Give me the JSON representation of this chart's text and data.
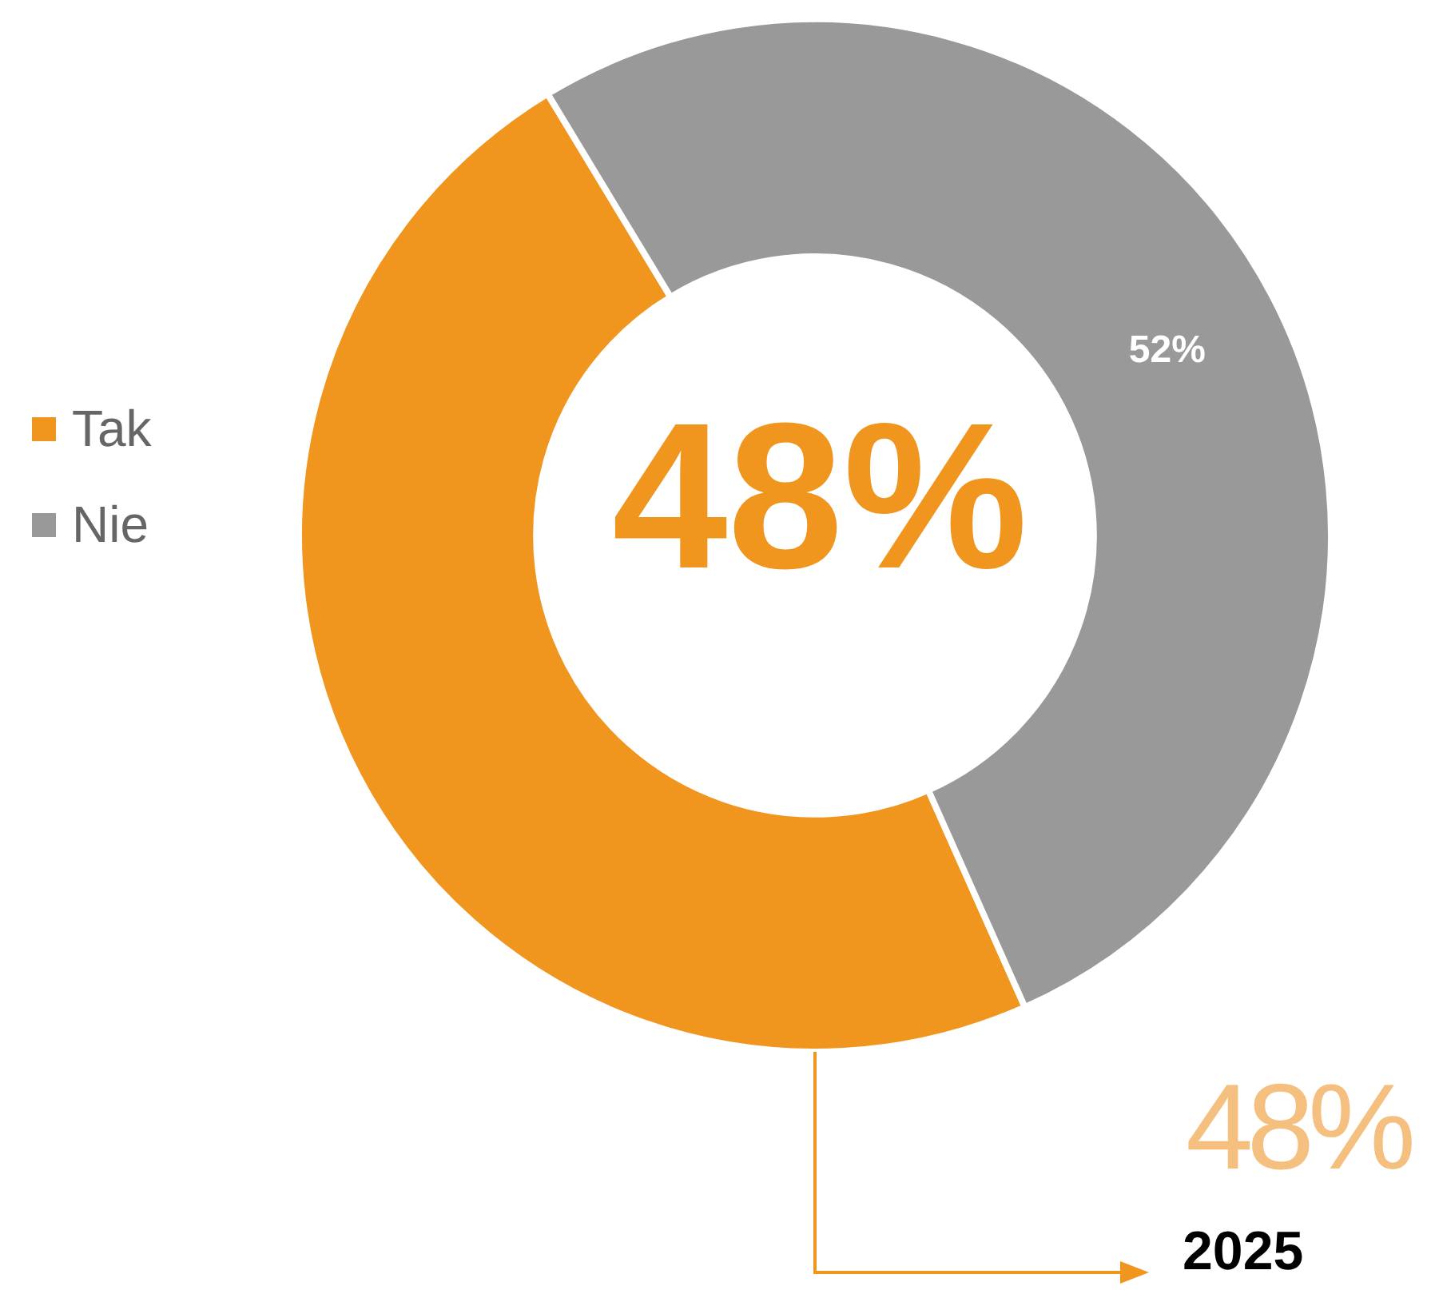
{
  "chart_data": {
    "type": "donut",
    "categories": [
      "Tak",
      "Nie"
    ],
    "values": [
      48,
      52
    ],
    "colors": [
      "#f0961f",
      "#999999"
    ],
    "value_labels": [
      null,
      "52%"
    ],
    "legend": "left",
    "annotations": [
      "48%",
      "48%",
      "2025"
    ]
  }
}
